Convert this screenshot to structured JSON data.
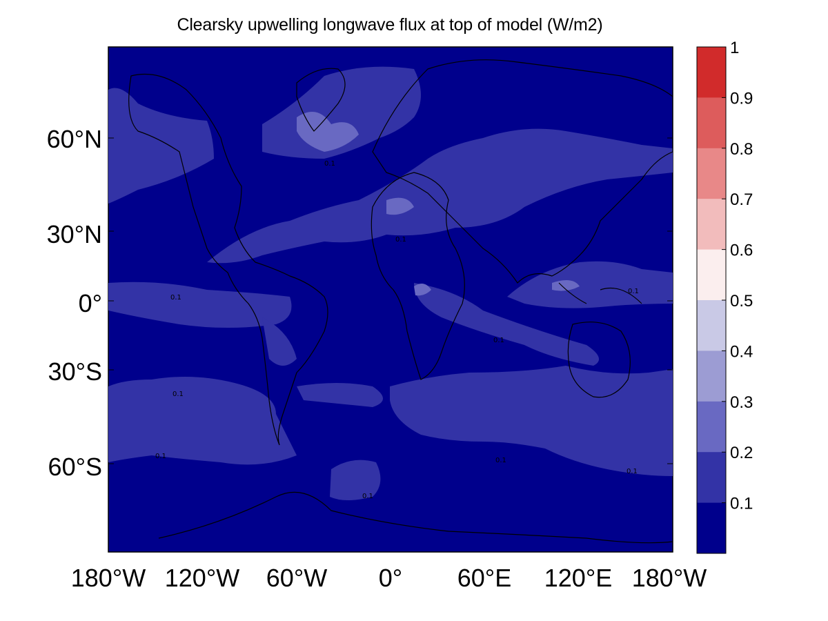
{
  "title": "Clearsky upwelling longwave flux at top of model (W/m2)",
  "y_ticks": [
    "60°N",
    "30°N",
    "0°",
    "30°S",
    "60°S"
  ],
  "x_ticks": [
    "180°W",
    "120°W",
    "60°W",
    "0°",
    "60°E",
    "120°E",
    "180°W"
  ],
  "colorbar": {
    "ticks": [
      "1",
      "0.9",
      "0.8",
      "0.7",
      "0.6",
      "0.5",
      "0.4",
      "0.3",
      "0.2",
      "0.1"
    ],
    "colors": [
      "#d12b2b",
      "#dd5c5c",
      "#e88888",
      "#f2bcbc",
      "#fbeeee",
      "#c9c9e6",
      "#9c9cd3",
      "#6969c2",
      "#3333a6",
      "#00008c"
    ]
  },
  "chart_data": {
    "type": "heatmap",
    "title": "Clearsky upwelling longwave flux at top of model (W/m2)",
    "x_range": [
      -180,
      180
    ],
    "y_range": [
      -90,
      90
    ],
    "x_ticks": [
      -180,
      -120,
      -60,
      0,
      60,
      120,
      180
    ],
    "y_ticks": [
      60,
      30,
      0,
      -30,
      -60
    ],
    "colorbar_ticks": [
      0.1,
      0.2,
      0.3,
      0.4,
      0.5,
      0.6,
      0.7,
      0.8,
      0.9,
      1
    ],
    "colorbar_range": [
      0,
      1
    ],
    "contour_label": "0.1"
  }
}
